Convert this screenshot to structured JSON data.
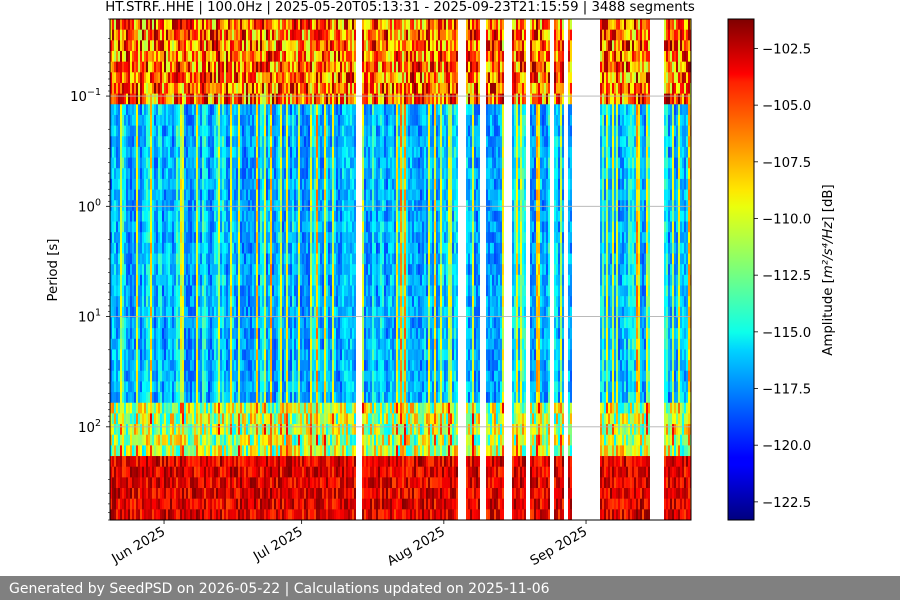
{
  "chart_data": {
    "type": "heatmap",
    "title": "HT.STRF..HHE | 100.0Hz | 2025-05-20T05:13:31 - 2025-09-23T21:15:59 | 3488 segments",
    "xlabel": "",
    "ylabel": "Period [s]",
    "y_scale": "log",
    "y_inverted": true,
    "ylim": [
      0.02,
      700
    ],
    "xlim": [
      "2025-05-20",
      "2025-09-23"
    ],
    "x_ticks": [
      {
        "date": "2025-06-01",
        "label": "Jun 2025"
      },
      {
        "date": "2025-07-01",
        "label": "Jul 2025"
      },
      {
        "date": "2025-08-01",
        "label": "Aug 2025"
      },
      {
        "date": "2025-09-01",
        "label": "Sep 2025"
      }
    ],
    "y_ticks": [
      {
        "value": 0.1,
        "base": "10",
        "exp": "−1"
      },
      {
        "value": 1,
        "base": "10",
        "exp": "0"
      },
      {
        "value": 10,
        "base": "10",
        "exp": "1"
      },
      {
        "value": 100,
        "base": "10",
        "exp": "2"
      }
    ],
    "grid": "horizontal lines at decades",
    "data_gaps": [
      [
        "2025-07-13",
        "2025-07-14"
      ],
      [
        "2025-08-04",
        "2025-08-06"
      ],
      [
        "2025-08-09",
        "2025-08-10"
      ],
      [
        "2025-08-14",
        "2025-08-16"
      ],
      [
        "2025-08-19",
        "2025-08-20"
      ],
      [
        "2025-08-24",
        "2025-08-25"
      ],
      [
        "2025-08-27",
        "2025-08-28"
      ],
      [
        "2025-08-29",
        "2025-09-04"
      ],
      [
        "2025-09-15",
        "2025-09-18"
      ]
    ],
    "colorbar": {
      "label_prefix": "Amplitude [",
      "label_math": "m²/s⁴/Hz",
      "label_suffix": "] [dB]",
      "min": -123.3,
      "max": -101.2,
      "colormap": "jet",
      "ticks": [
        "−102.5",
        "−105.0",
        "−107.5",
        "−110.0",
        "−112.5",
        "−115.0",
        "−117.5",
        "−120.0",
        "−122.5"
      ]
    }
  },
  "footer": {
    "text": "Generated by SeedPSD on 2026-05-22 | Calculations updated on 2025-11-06"
  }
}
